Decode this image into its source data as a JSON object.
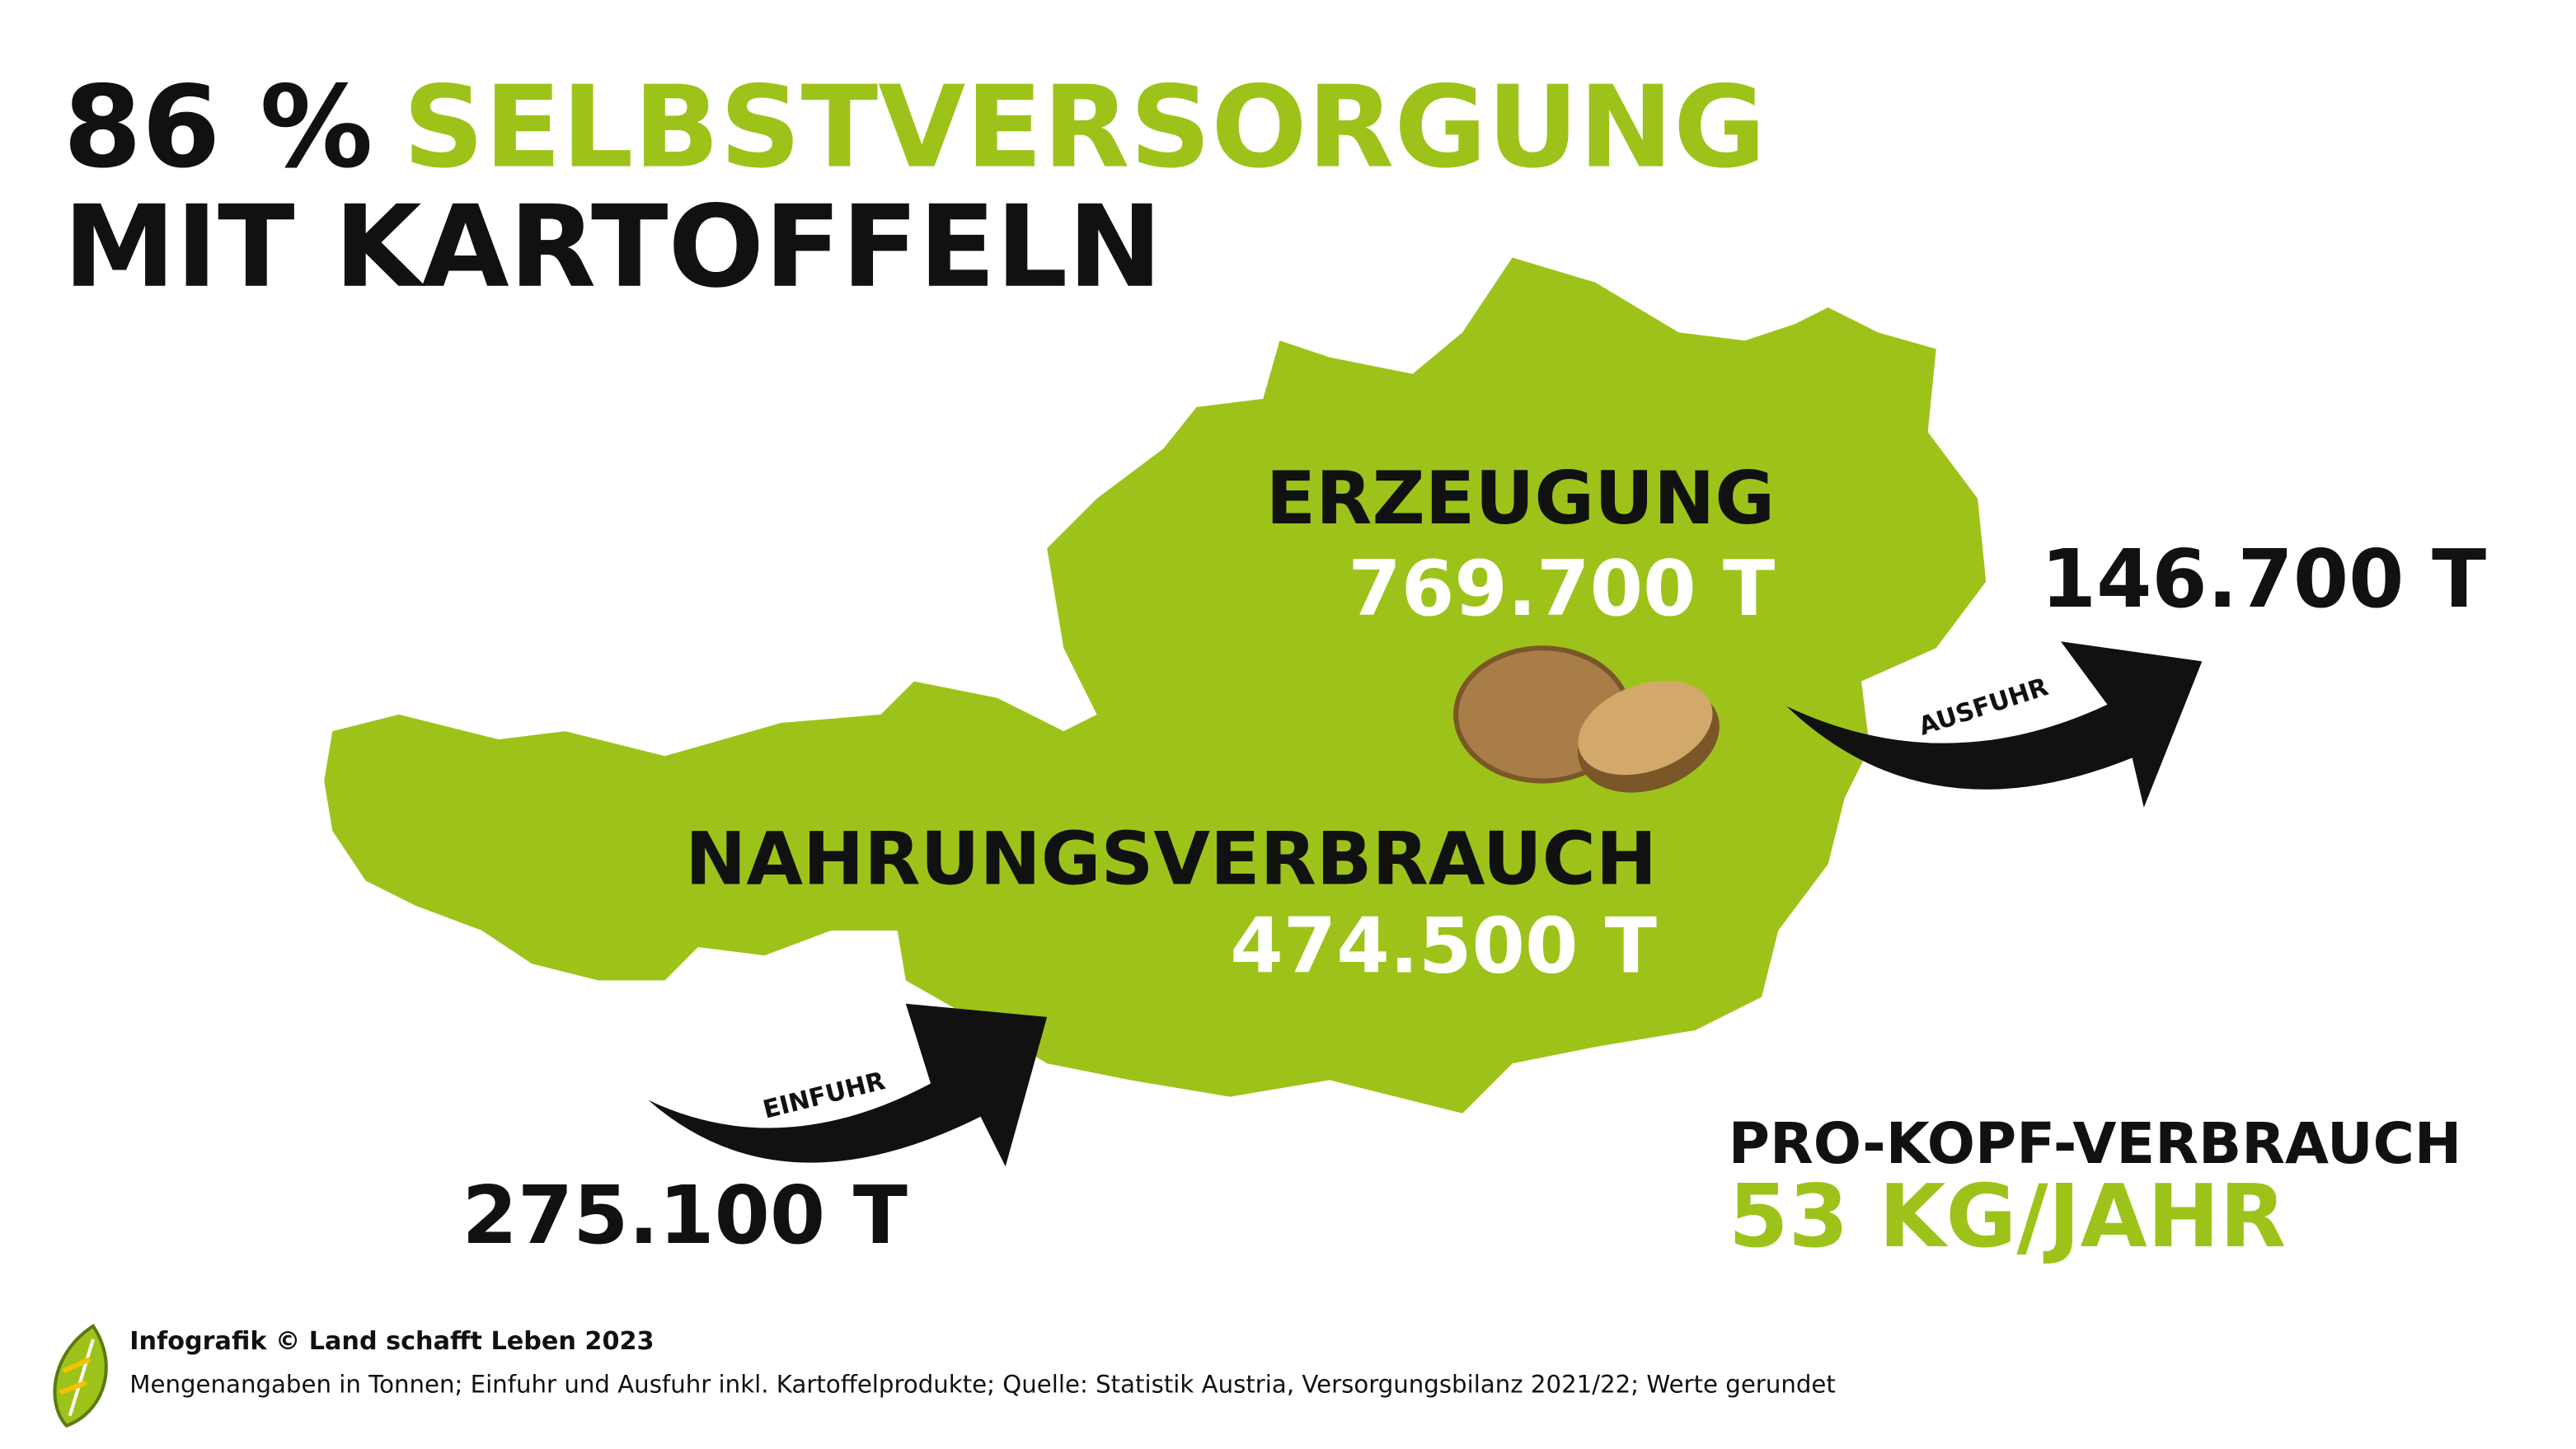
{
  "title": {
    "prefix": "86 %",
    "highlight": "SELBSTVERSORGUNG",
    "line2": "MIT KARTOFFELN"
  },
  "production": {
    "label": "ERZEUGUNG",
    "value": "769.700 T"
  },
  "consumption": {
    "label": "NAHRUNGSVERBRAUCH",
    "value": "474.500 T"
  },
  "import": {
    "label": "EINFUHR",
    "value": "275.100 T"
  },
  "export": {
    "label": "AUSFUHR",
    "value": "146.700 T"
  },
  "per_capita": {
    "label": "PRO-KOPF-VERBRAUCH",
    "value": "53 KG/JAHR"
  },
  "footer": {
    "credit": "Infografik © Land schafft Leben 2023",
    "note": "Mengenangaben in Tonnen; Einfuhr und Ausfuhr inkl. Kartoffelprodukte; Quelle: Statistik Austria, Versorgungsbilanz 2021/22; Werte gerundet"
  }
}
